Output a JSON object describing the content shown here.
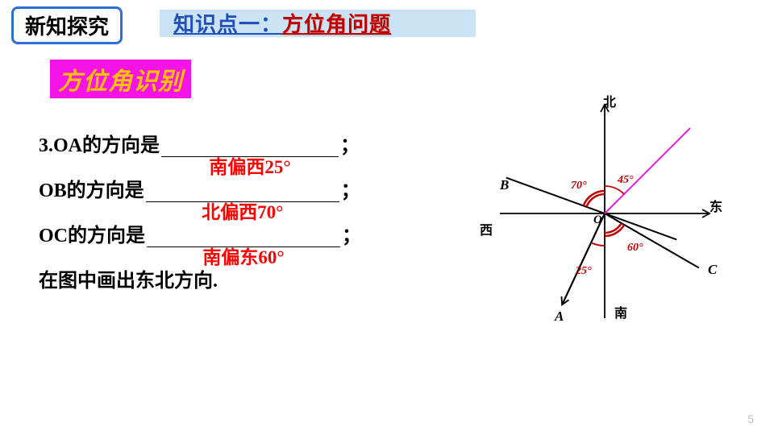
{
  "header": {
    "badge": "新知探究",
    "kp_prefix": "知识点一：",
    "kp_topic": "方位角问题"
  },
  "sub": "方位角识别",
  "q": {
    "num": "3.",
    "oa_prefix": "OA的方向是",
    "oa_answer": "南偏西25°",
    "ob_prefix": "OB的方向是",
    "ob_answer": "北偏西70°",
    "oc_prefix": "OC的方向是",
    "oc_answer": "南偏东60°",
    "semicolon": "；",
    "last": "在图中画出东北方向."
  },
  "diagram": {
    "north": "北",
    "south": "南",
    "east": "东",
    "west": "西",
    "O": "O",
    "A": "A",
    "B": "B",
    "C": "C",
    "a45": "45°",
    "a70": "70°",
    "a60": "60°",
    "a25": "25°",
    "colors": {
      "axis": "#000000",
      "ray_b": "#000000",
      "ray_c": "#000000",
      "ray_a": "#000000",
      "ne": "#f514e8",
      "arc": "#c00000"
    },
    "angles_deg": {
      "B_from_north_ccw": 70,
      "C_from_south_cw": 60,
      "A_from_south_ccw": 25,
      "NE": 45
    }
  },
  "page": "5"
}
